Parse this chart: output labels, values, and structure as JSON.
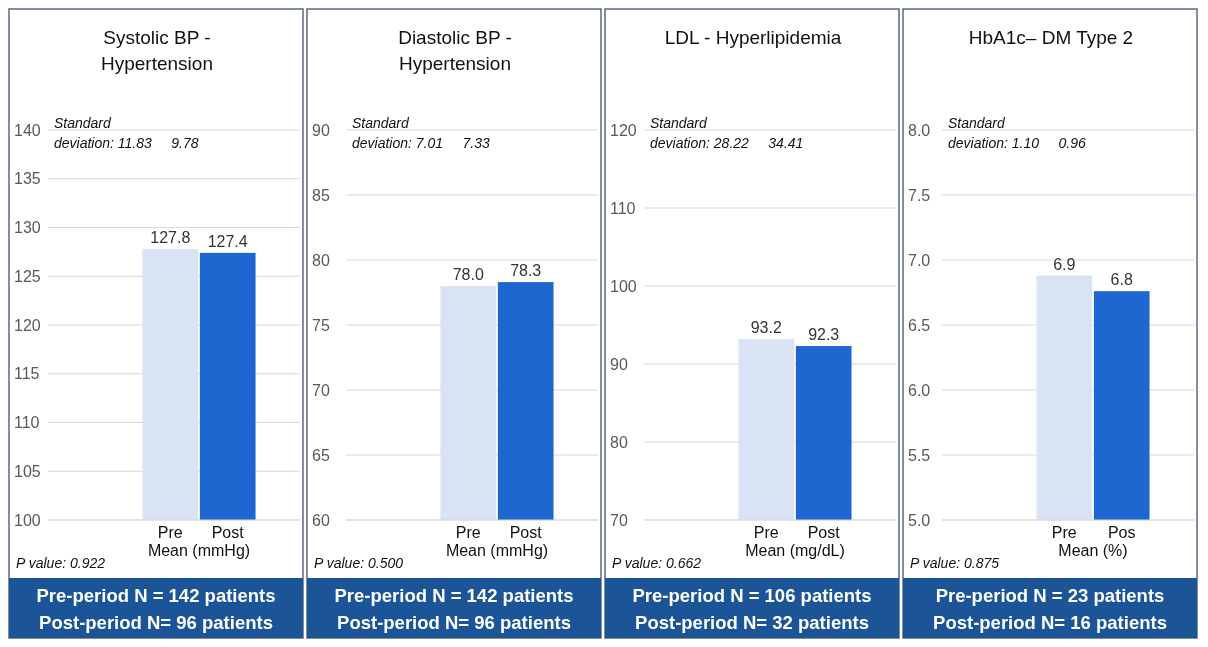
{
  "chart_data": [
    {
      "type": "bar",
      "title": "Systolic BP - Hypertension",
      "categories": [
        "Pre",
        "Post"
      ],
      "xlabel": "Mean (mmHg)",
      "values": [
        127.8,
        127.4
      ],
      "value_labels": [
        "127.8",
        "127.4"
      ],
      "colors": [
        "#dae3f3",
        "#1f67d0"
      ],
      "ylim": [
        100,
        140
      ],
      "yticks": [
        100,
        105,
        110,
        115,
        120,
        125,
        130,
        135,
        140
      ],
      "grid": "y",
      "annotations": [
        "Standard deviation: 11.83     9.78",
        "P value: 0.922",
        "Pre-period N = 142 patients",
        "Post-period N= 96 patients"
      ]
    },
    {
      "type": "bar",
      "title": "Diastolic BP - Hypertension",
      "categories": [
        "Pre",
        "Post"
      ],
      "xlabel": "Mean (mmHg)",
      "values": [
        78.0,
        78.3
      ],
      "value_labels": [
        "78.0",
        "78.3"
      ],
      "colors": [
        "#dae3f3",
        "#1f67d0"
      ],
      "ylim": [
        60,
        90
      ],
      "yticks": [
        60,
        65,
        70,
        75,
        80,
        85,
        90
      ],
      "grid": "y",
      "annotations": [
        "Standard deviation: 7.01     7.33",
        "P value: 0.500",
        "Pre-period N = 142 patients",
        "Post-period N= 96 patients"
      ]
    },
    {
      "type": "bar",
      "title": "LDL - Hyperlipidemia",
      "categories": [
        "Pre",
        "Post"
      ],
      "xlabel": "Mean (mg/dL)",
      "values": [
        93.2,
        92.3
      ],
      "value_labels": [
        "93.2",
        "92.3"
      ],
      "colors": [
        "#dae3f3",
        "#1f67d0"
      ],
      "ylim": [
        70,
        120
      ],
      "yticks": [
        70,
        80,
        90,
        100,
        110,
        120
      ],
      "grid": "y",
      "annotations": [
        "Standard deviation: 28.22     34.41",
        "P value: 0.662",
        "Pre-period N = 106 patients",
        "Post-period N= 32 patients"
      ]
    },
    {
      "type": "bar",
      "title": "HbA1c– DM Type 2",
      "categories": [
        "Pre",
        "Pos"
      ],
      "xlabel": "Mean (%)",
      "values": [
        6.88,
        6.76
      ],
      "value_labels": [
        "6.9",
        "6.8"
      ],
      "colors": [
        "#dae3f3",
        "#1f67d0"
      ],
      "ylim": [
        5,
        8
      ],
      "yticks": [
        {
          "value": 5,
          "label": "5.0"
        },
        {
          "value": 5.5,
          "label": "5.5"
        },
        {
          "value": 6,
          "label": "6.0"
        },
        {
          "value": 6.5,
          "label": "6.5"
        },
        {
          "value": 7,
          "label": "7.0"
        },
        {
          "value": 7.5,
          "label": "7.5"
        },
        {
          "value": 8,
          "label": "8.0"
        }
      ],
      "grid": "y",
      "annotations": [
        "Standard deviation: 1.10     0.96",
        "P value: 0.875",
        "Pre-period N = 23 patients",
        "Post-period N= 16 patients"
      ]
    }
  ]
}
